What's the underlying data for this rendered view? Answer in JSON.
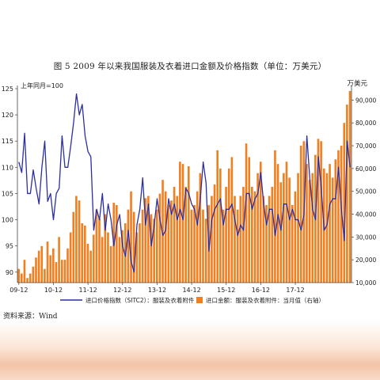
{
  "title": "图 5   2009 年以来我国服装及衣着进口金额及价格指数（单位：万美元）",
  "source": "资料来源：Wind",
  "chart_data": {
    "type": "bar+line",
    "x_tick_labels": [
      "09-12",
      "10-12",
      "11-12",
      "12-12",
      "13-12",
      "14-12",
      "15-12",
      "16-12",
      "17-12"
    ],
    "left_axis": {
      "label": "上年同月=100",
      "ylim": [
        88,
        125
      ],
      "ticks": [
        90,
        95,
        100,
        105,
        110,
        115,
        120,
        125
      ]
    },
    "right_axis": {
      "label": "万美元",
      "ylim": [
        10000,
        95000
      ],
      "ticks": [
        10000,
        20000,
        30000,
        40000,
        50000,
        60000,
        70000,
        80000,
        90000
      ]
    },
    "grid": false,
    "legend_position": "bottom",
    "colors": {
      "line": "#2b2fa0",
      "bar": "#f07f20"
    },
    "series": [
      {
        "name": "进口价格指数（SITC2）：服装及衣着附件",
        "axis": "left",
        "type": "line",
        "values": [
          111,
          109,
          116.5,
          105,
          105,
          109.5,
          106,
          103,
          110,
          115,
          103.5,
          105,
          100,
          105,
          106,
          116,
          110,
          110,
          114,
          118.5,
          124,
          120,
          122,
          116,
          113,
          112,
          98,
          102,
          100,
          105,
          98,
          103,
          100,
          95,
          99,
          101,
          95,
          93,
          98,
          92,
          90,
          99,
          102,
          108,
          99,
          103,
          95,
          99,
          104,
          100,
          97,
          98,
          104,
          101,
          103,
          100,
          102,
          100,
          106,
          105,
          103,
          102,
          99,
          104,
          111,
          107,
          94,
          100,
          102,
          103,
          104,
          99,
          102,
          102,
          103,
          100,
          97,
          99,
          98,
          105,
          105,
          102,
          104,
          105,
          109,
          103,
          99,
          102,
          102,
          97,
          101,
          98,
          103,
          103,
          100,
          102,
          100,
          100,
          98,
          101,
          116,
          108,
          102,
          100,
          112,
          106,
          98,
          99,
          103,
          104,
          104,
          110,
          102,
          96,
          115,
          110
        ],
        "notes": "monthly values, read off the chart (estimated)"
      },
      {
        "name": "进口金额：服装及衣着附件：当月值（右轴）",
        "axis": "right",
        "type": "bar",
        "values": [
          16000,
          14000,
          20000,
          12000,
          14000,
          17000,
          21000,
          24000,
          26000,
          16000,
          28000,
          22000,
          25000,
          19000,
          30000,
          20000,
          20000,
          25000,
          32000,
          41000,
          48000,
          46000,
          36000,
          35000,
          27000,
          24000,
          31000,
          42000,
          38000,
          30000,
          40000,
          32000,
          26000,
          45000,
          44000,
          30000,
          33000,
          36000,
          42000,
          50000,
          41000,
          32000,
          36000,
          42000,
          47000,
          48000,
          40000,
          38000,
          42000,
          49000,
          55000,
          50000,
          44000,
          46000,
          52000,
          48000,
          63000,
          62000,
          52000,
          61000,
          42000,
          44000,
          50000,
          58000,
          42000,
          38000,
          44000,
          48000,
          53000,
          68000,
          60000,
          42000,
          52000,
          60000,
          65000,
          48000,
          42000,
          48000,
          52000,
          71000,
          65000,
          52000,
          50000,
          58000,
          63000,
          48000,
          44000,
          48000,
          52000,
          68000,
          62000,
          54000,
          58000,
          63000,
          56000,
          44000,
          50000,
          58000,
          70000,
          72000,
          62000,
          55000,
          58000,
          66000,
          73000,
          72000,
          60000,
          58000,
          62000,
          56000,
          64000,
          68000,
          70000,
          80000,
          88000,
          94000
        ],
        "notes": "monthly values in 万美元, read off the chart (estimated)"
      }
    ]
  }
}
